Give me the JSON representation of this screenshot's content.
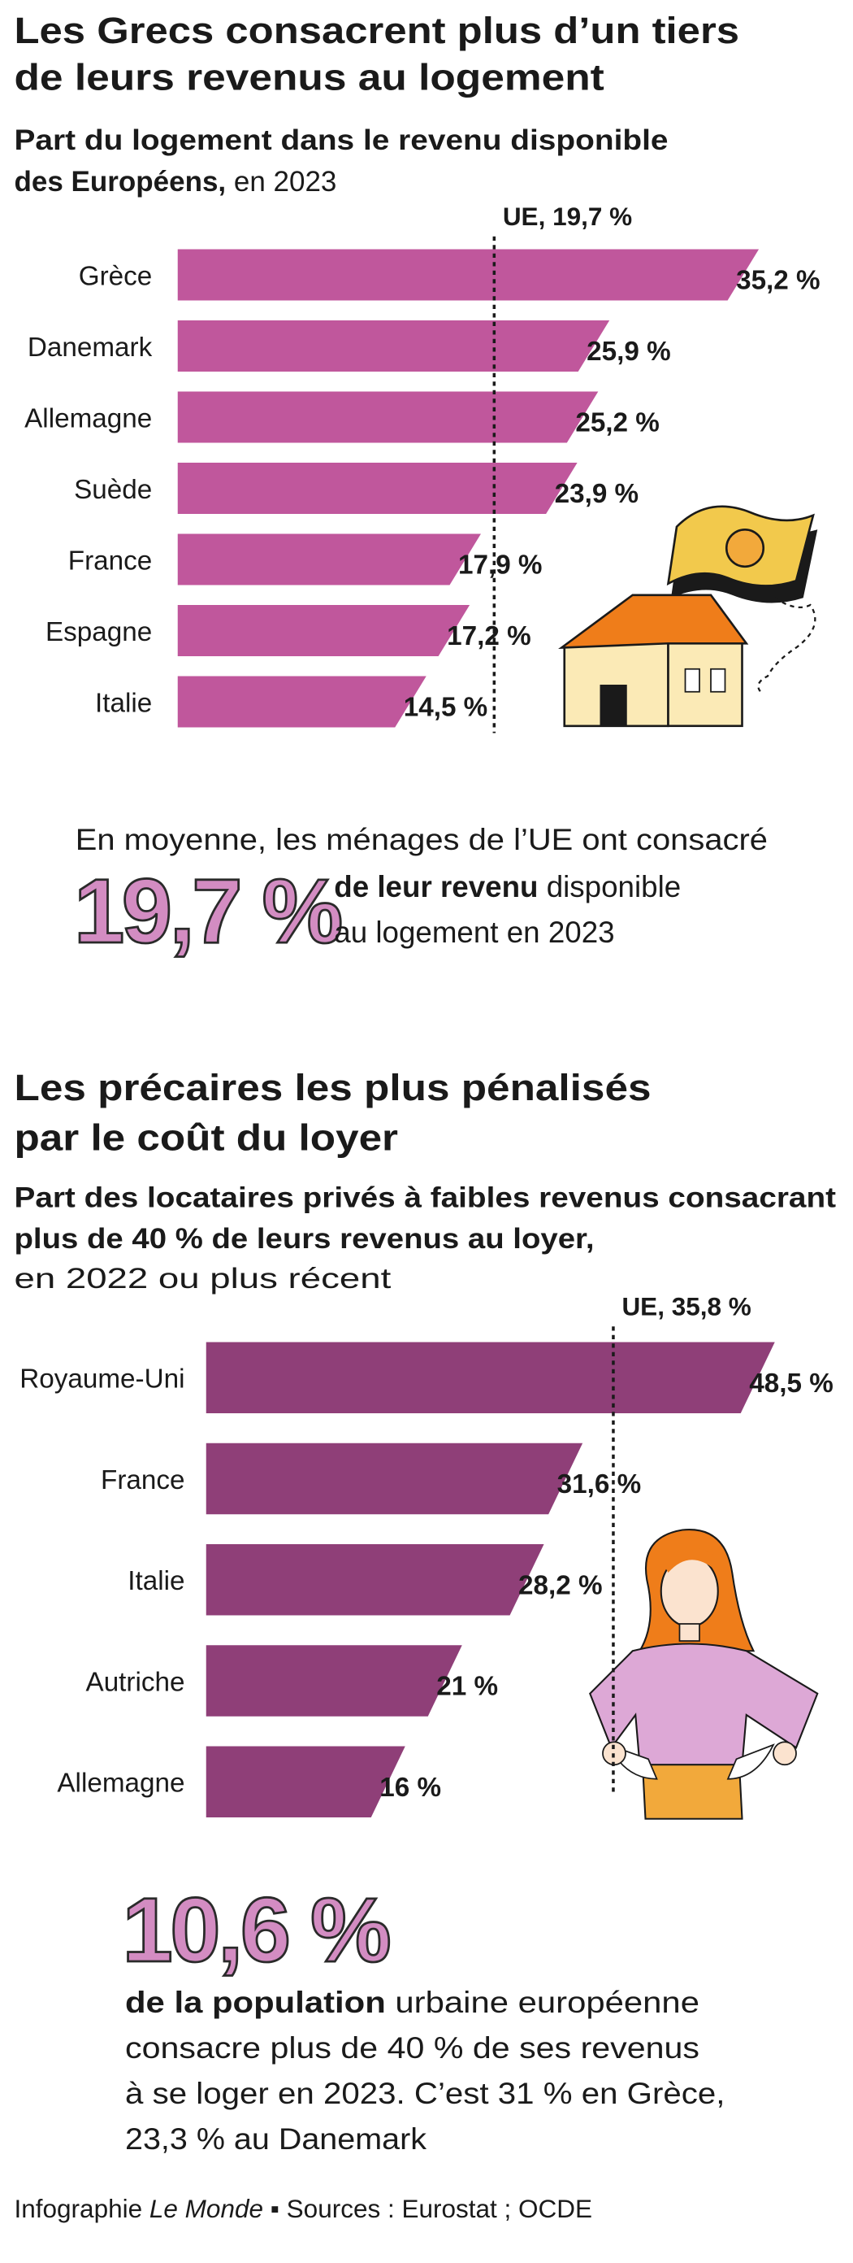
{
  "chart_data": [
    {
      "type": "bar",
      "orientation": "horizontal",
      "title": [
        "Les Grecs consacrent plus d’un tiers",
        "de leurs revenus au logement"
      ],
      "subtitle": {
        "bold": [
          "Part du logement dans le revenu disponible",
          "des Européens,"
        ],
        "regular": "en 2023"
      },
      "categories": [
        "Grèce",
        "Danemark",
        "Allemagne",
        "Suède",
        "France",
        "Espagne",
        "Italie"
      ],
      "values": [
        35.2,
        25.9,
        25.2,
        23.9,
        17.9,
        17.2,
        14.5
      ],
      "value_labels": [
        "35,2 %",
        "25,9 %",
        "25,2 %",
        "23,9 %",
        "17,9 %",
        "17,2 %",
        "14,5 %"
      ],
      "color": "#c0579c",
      "reference": {
        "value": 19.7,
        "label": "UE, 19,7 %"
      },
      "callout": {
        "intro": "En moyenne, les ménages de l’UE ont consacré",
        "figure": "19,7 %",
        "bold": "de leur revenu",
        "text": [
          "disponible",
          "au logement en 2023"
        ]
      }
    },
    {
      "type": "bar",
      "orientation": "horizontal",
      "title": [
        "Les précaires les plus pénalisés",
        "par le coût du loyer"
      ],
      "subtitle": {
        "bold": [
          "Part des locataires privés à faibles revenus consacrant",
          "plus de 40  % de leurs revenus au loyer,"
        ],
        "regular": "en 2022 ou plus récent"
      },
      "categories": [
        "Royaume-Uni",
        "France",
        "Italie",
        "Autriche",
        "Allemagne"
      ],
      "values": [
        48.5,
        31.6,
        28.2,
        21,
        16
      ],
      "value_labels": [
        "48,5 %",
        "31,6 %",
        "28,2 %",
        "21 %",
        "16 %"
      ],
      "color": "#8f3f78",
      "reference": {
        "value": 35.8,
        "label": "UE, 35,8 %"
      },
      "callout": {
        "figure": "10,6 %",
        "bold": "de la population",
        "text": [
          "urbaine européenne",
          "consacre plus de 40 % de ses revenus",
          "à se loger en 2023. C’est 31 % en Grèce,",
          "23,3 % au Danemark"
        ]
      }
    }
  ],
  "footer": {
    "credit": "Infographie",
    "outlet": "Le Monde",
    "sources": "Sources : Eurostat ; OCDE"
  }
}
